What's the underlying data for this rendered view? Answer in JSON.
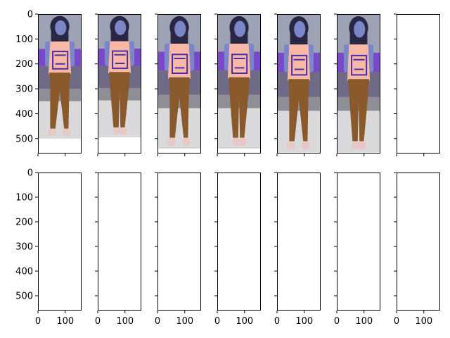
{
  "chart_data": {
    "type": "image-grid",
    "rows": 2,
    "cols": 7,
    "shared_x": true,
    "shared_y": true,
    "xlim": [
      0,
      160
    ],
    "ylim": [
      560,
      0
    ],
    "x_ticks": [
      0,
      100
    ],
    "y_ticks": [
      0,
      100,
      200,
      300,
      400,
      500
    ],
    "x_tick_labels": [
      "0",
      "100"
    ],
    "y_tick_labels": [
      "0",
      "100",
      "200",
      "300",
      "400",
      "500"
    ],
    "panels": [
      {
        "row": 0,
        "col": 0,
        "content": "person-walking",
        "image_height": 500
      },
      {
        "row": 0,
        "col": 1,
        "content": "person-walking",
        "image_height": 495
      },
      {
        "row": 0,
        "col": 2,
        "content": "person-walking",
        "image_height": 540
      },
      {
        "row": 0,
        "col": 3,
        "content": "person-walking",
        "image_height": 540
      },
      {
        "row": 0,
        "col": 4,
        "content": "person-walking",
        "image_height": 555
      },
      {
        "row": 0,
        "col": 5,
        "content": "person-walking",
        "image_height": 555
      },
      {
        "row": 0,
        "col": 6,
        "content": "empty"
      },
      {
        "row": 1,
        "col": 0,
        "content": "empty"
      },
      {
        "row": 1,
        "col": 1,
        "content": "empty"
      },
      {
        "row": 1,
        "col": 2,
        "content": "empty"
      },
      {
        "row": 1,
        "col": 3,
        "content": "empty"
      },
      {
        "row": 1,
        "col": 4,
        "content": "empty"
      },
      {
        "row": 1,
        "col": 5,
        "content": "empty"
      },
      {
        "row": 1,
        "col": 6,
        "content": "empty"
      }
    ],
    "colors": {
      "skin": "#7b86c9",
      "hair": "#2a2744",
      "top": "#f7b9a6",
      "print": "#4b2fa6",
      "pants": "#8a5a2c",
      "shoes": "#e8c8c4",
      "ground": "#d9d9dc",
      "hedge": "#6f6a86",
      "flowers": "#7a49c9",
      "background": "#9da3b4"
    }
  }
}
